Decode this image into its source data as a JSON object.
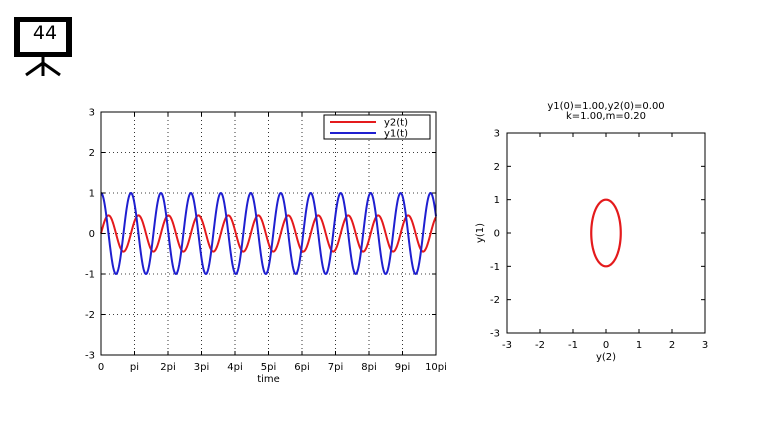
{
  "slide": {
    "number": "44",
    "icon": "projector-screen-icon"
  },
  "chart_data": [
    {
      "type": "line",
      "title": "",
      "xlabel": "time",
      "ylabel": "",
      "xlim": [
        0,
        31.4159
      ],
      "ylim": [
        -3,
        3
      ],
      "grid": true,
      "legend_position": "top-right",
      "x_ticks": [
        {
          "value": 0,
          "label": "0"
        },
        {
          "value": 3.14159,
          "label": "pi"
        },
        {
          "value": 6.28319,
          "label": "2pi"
        },
        {
          "value": 9.42478,
          "label": "3pi"
        },
        {
          "value": 12.56637,
          "label": "4pi"
        },
        {
          "value": 15.70796,
          "label": "5pi"
        },
        {
          "value": 18.84956,
          "label": "6pi"
        },
        {
          "value": 21.99115,
          "label": "7pi"
        },
        {
          "value": 25.13274,
          "label": "8pi"
        },
        {
          "value": 28.27433,
          "label": "9pi"
        },
        {
          "value": 31.41593,
          "label": "10pi"
        }
      ],
      "y_ticks": [
        "-3",
        "-2",
        "-1",
        "0",
        "1",
        "2",
        "3"
      ],
      "series": [
        {
          "name": "y2(t)",
          "color": "#e41a1c",
          "function": "0.4472*sin(2.2361*t)",
          "amplitude": 0.4472,
          "omega": 2.2361,
          "t_range": [
            0,
            31.4159
          ]
        },
        {
          "name": "y1(t)",
          "color": "#1f1fd0",
          "function": "cos(2.2361*t)",
          "amplitude": 1.0,
          "omega": 2.2361,
          "t_range": [
            0,
            31.4159
          ]
        }
      ]
    },
    {
      "type": "line",
      "title_lines": [
        "y1(0)=1.00,y2(0)=0.00",
        "k=1.00,m=0.20"
      ],
      "xlabel": "y(2)",
      "ylabel": "y(1)",
      "xlim": [
        -3,
        3
      ],
      "ylim": [
        -3,
        3
      ],
      "grid": false,
      "x_ticks": [
        "-3",
        "-2",
        "-1",
        "0",
        "1",
        "2",
        "3"
      ],
      "y_ticks": [
        "-3",
        "-2",
        "-1",
        "0",
        "1",
        "2",
        "3"
      ],
      "series": [
        {
          "color": "#e41a1c",
          "shape": "ellipse",
          "center": [
            0,
            0
          ],
          "x_semi_axis": 0.4472,
          "y_semi_axis": 1.0
        }
      ]
    }
  ]
}
